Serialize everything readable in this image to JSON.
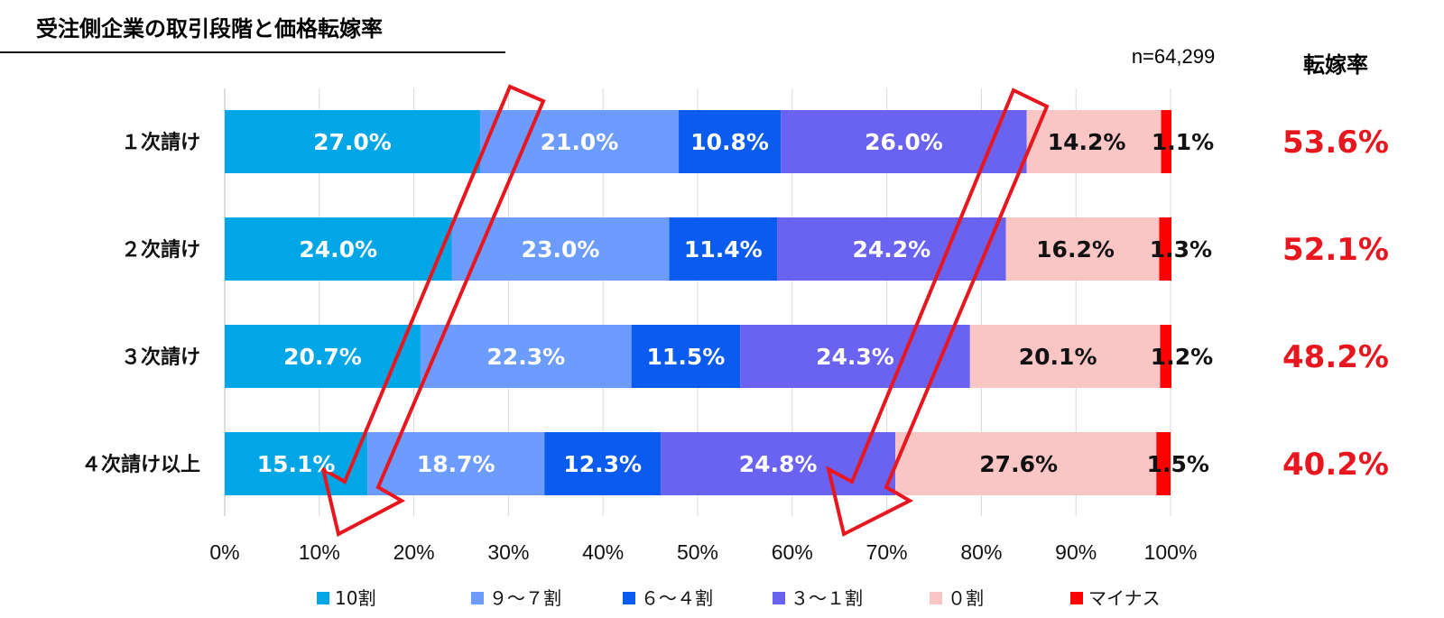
{
  "chart_data": {
    "type": "bar",
    "orientation": "horizontal",
    "stacked": true,
    "title": "受注側企業の取引段階と価格転嫁率",
    "sample_note": "n=64,299",
    "rate_header": "転嫁率",
    "categories": [
      "１次請け",
      "２次請け",
      "３次請け",
      "４次請け以上"
    ],
    "series": [
      {
        "name": "10割",
        "color": "#00a6e6",
        "text_color": "#ffffff",
        "values": [
          27.0,
          24.0,
          20.7,
          15.1
        ]
      },
      {
        "name": "９～７割",
        "color": "#6c9cff",
        "text_color": "#ffffff",
        "values": [
          21.0,
          23.0,
          22.3,
          18.7
        ]
      },
      {
        "name": "６～４割",
        "color": "#0a5cf0",
        "text_color": "#ffffff",
        "values": [
          10.8,
          11.4,
          11.5,
          12.3
        ]
      },
      {
        "name": "３～１割",
        "color": "#6a63f2",
        "text_color": "#ffffff",
        "values": [
          26.0,
          24.2,
          24.3,
          24.8
        ]
      },
      {
        "name": "０割",
        "color": "#fac5c5",
        "text_color": "#111111",
        "values": [
          14.2,
          16.2,
          20.1,
          27.6
        ]
      },
      {
        "name": "マイナス",
        "color": "#ff0000",
        "text_color": "#111111",
        "values": [
          1.1,
          1.3,
          1.2,
          1.5
        ]
      }
    ],
    "rates": [
      "53.6%",
      "52.1%",
      "48.2%",
      "40.2%"
    ],
    "rate_color": "#e8161e",
    "xlim": [
      0,
      100
    ],
    "xticks": [
      "0%",
      "10%",
      "20%",
      "30%",
      "40%",
      "50%",
      "60%",
      "70%",
      "80%",
      "90%",
      "100%"
    ],
    "grid": true,
    "legend_position": "bottom",
    "annotations": [
      {
        "type": "arrow",
        "color": "#e8161e",
        "description": "boundary of 10割 segment shifts left from 1次 to 4次以上"
      },
      {
        "type": "arrow",
        "color": "#e8161e",
        "description": "boundary of 3～1割 segment shifts left from 1次 to 4次以上"
      }
    ]
  }
}
